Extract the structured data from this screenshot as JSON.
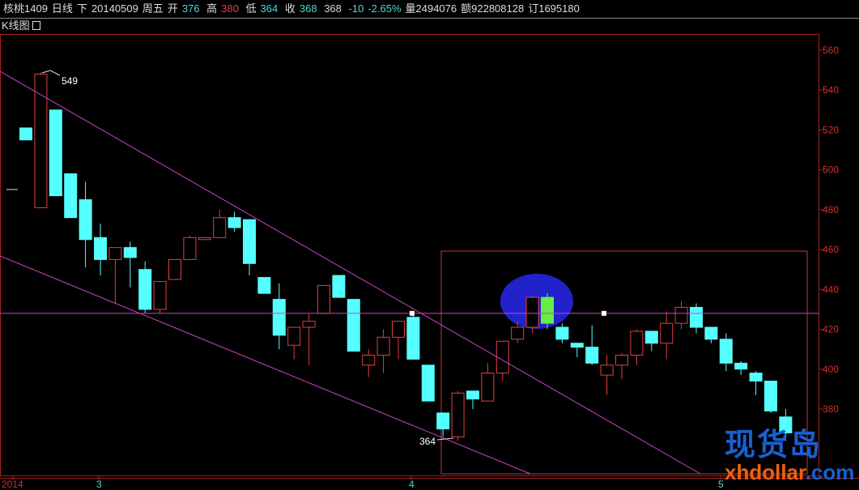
{
  "header": {
    "symbol": "核桃1409",
    "period": "日线",
    "direction": "下",
    "date": "20140509",
    "weekday": "周五",
    "open_label": "开",
    "open": "376",
    "high_label": "高",
    "high": "380",
    "low_label": "低",
    "low": "364",
    "close_label": "收",
    "close": "368",
    "settle": "368",
    "change": "-10",
    "change_pct": "-2.65%",
    "volume": "量2494076",
    "amount": "额922808128",
    "open_interest": "订1695180"
  },
  "panel": {
    "title": "K线图",
    "toggle_icon": "minimize-icon"
  },
  "colors": {
    "up": "#e04040",
    "down": "#55ffff",
    "highlight": "#66ee44",
    "trendline": "#cc44cc",
    "box": "#cc3333",
    "ellipse": "#2222cc"
  },
  "chart_data": {
    "type": "candlestick",
    "ylim": [
      360,
      566
    ],
    "yticks": [
      380,
      400,
      420,
      440,
      460,
      480,
      500,
      520,
      540,
      560
    ],
    "xlabels": [
      "2014",
      "3",
      "4",
      "5"
    ],
    "annotations": [
      "549",
      "364"
    ],
    "candles": [
      [
        521,
        515,
        521,
        515
      ],
      [
        481,
        548,
        549,
        481
      ],
      [
        530,
        487,
        530,
        487
      ],
      [
        498,
        476,
        498,
        476
      ],
      [
        485,
        465,
        494,
        451
      ],
      [
        466,
        455,
        473,
        447
      ],
      [
        455,
        461,
        461,
        433
      ],
      [
        461,
        456,
        464,
        441
      ],
      [
        450,
        430,
        454,
        428
      ],
      [
        430,
        444,
        444,
        428
      ],
      [
        445,
        455,
        455,
        445
      ],
      [
        455,
        466,
        467,
        455
      ],
      [
        465,
        466,
        466,
        465
      ],
      [
        466,
        476,
        480,
        466
      ],
      [
        476,
        471,
        479,
        469
      ],
      [
        475,
        453,
        475,
        447
      ],
      [
        446,
        438,
        446,
        438
      ],
      [
        435,
        417,
        443,
        410
      ],
      [
        412,
        421,
        421,
        405
      ],
      [
        421,
        424,
        428,
        402
      ],
      [
        428,
        442,
        442,
        428
      ],
      [
        447,
        436,
        447,
        436
      ],
      [
        435,
        409,
        435,
        409
      ],
      [
        402,
        407,
        410,
        396
      ],
      [
        407,
        416,
        420,
        398
      ],
      [
        416,
        424,
        424,
        405
      ],
      [
        426,
        405,
        427,
        405
      ],
      [
        402,
        384,
        402,
        384
      ],
      [
        378,
        370,
        378,
        366
      ],
      [
        366,
        388,
        389,
        364
      ],
      [
        389,
        385,
        389,
        380
      ],
      [
        384,
        398,
        403,
        384
      ],
      [
        398,
        414,
        414,
        394
      ],
      [
        415,
        421,
        424,
        413
      ],
      [
        421,
        436,
        437,
        418
      ],
      [
        436,
        423,
        438,
        420
      ],
      [
        421,
        415,
        423,
        413
      ],
      [
        413,
        411,
        413,
        406
      ],
      [
        411,
        403,
        422,
        402
      ],
      [
        397,
        402,
        407,
        387
      ],
      [
        402,
        407,
        408,
        395
      ],
      [
        407,
        419,
        420,
        402
      ],
      [
        419,
        413,
        419,
        409
      ],
      [
        413,
        423,
        429,
        405
      ],
      [
        423,
        431,
        434,
        420
      ],
      [
        431,
        421,
        433,
        418
      ],
      [
        421,
        415,
        421,
        413
      ],
      [
        415,
        403,
        418,
        399
      ],
      [
        403,
        400,
        404,
        397
      ],
      [
        398,
        394,
        399,
        387
      ],
      [
        394,
        379,
        394,
        378
      ],
      [
        376,
        368,
        380,
        364
      ]
    ],
    "candle_fields": [
      "open",
      "close",
      "high",
      "low"
    ],
    "highlight_index": 35,
    "reference_level": 428
  },
  "watermark": {
    "cn": "现货岛",
    "en": "xhdollar.com"
  }
}
